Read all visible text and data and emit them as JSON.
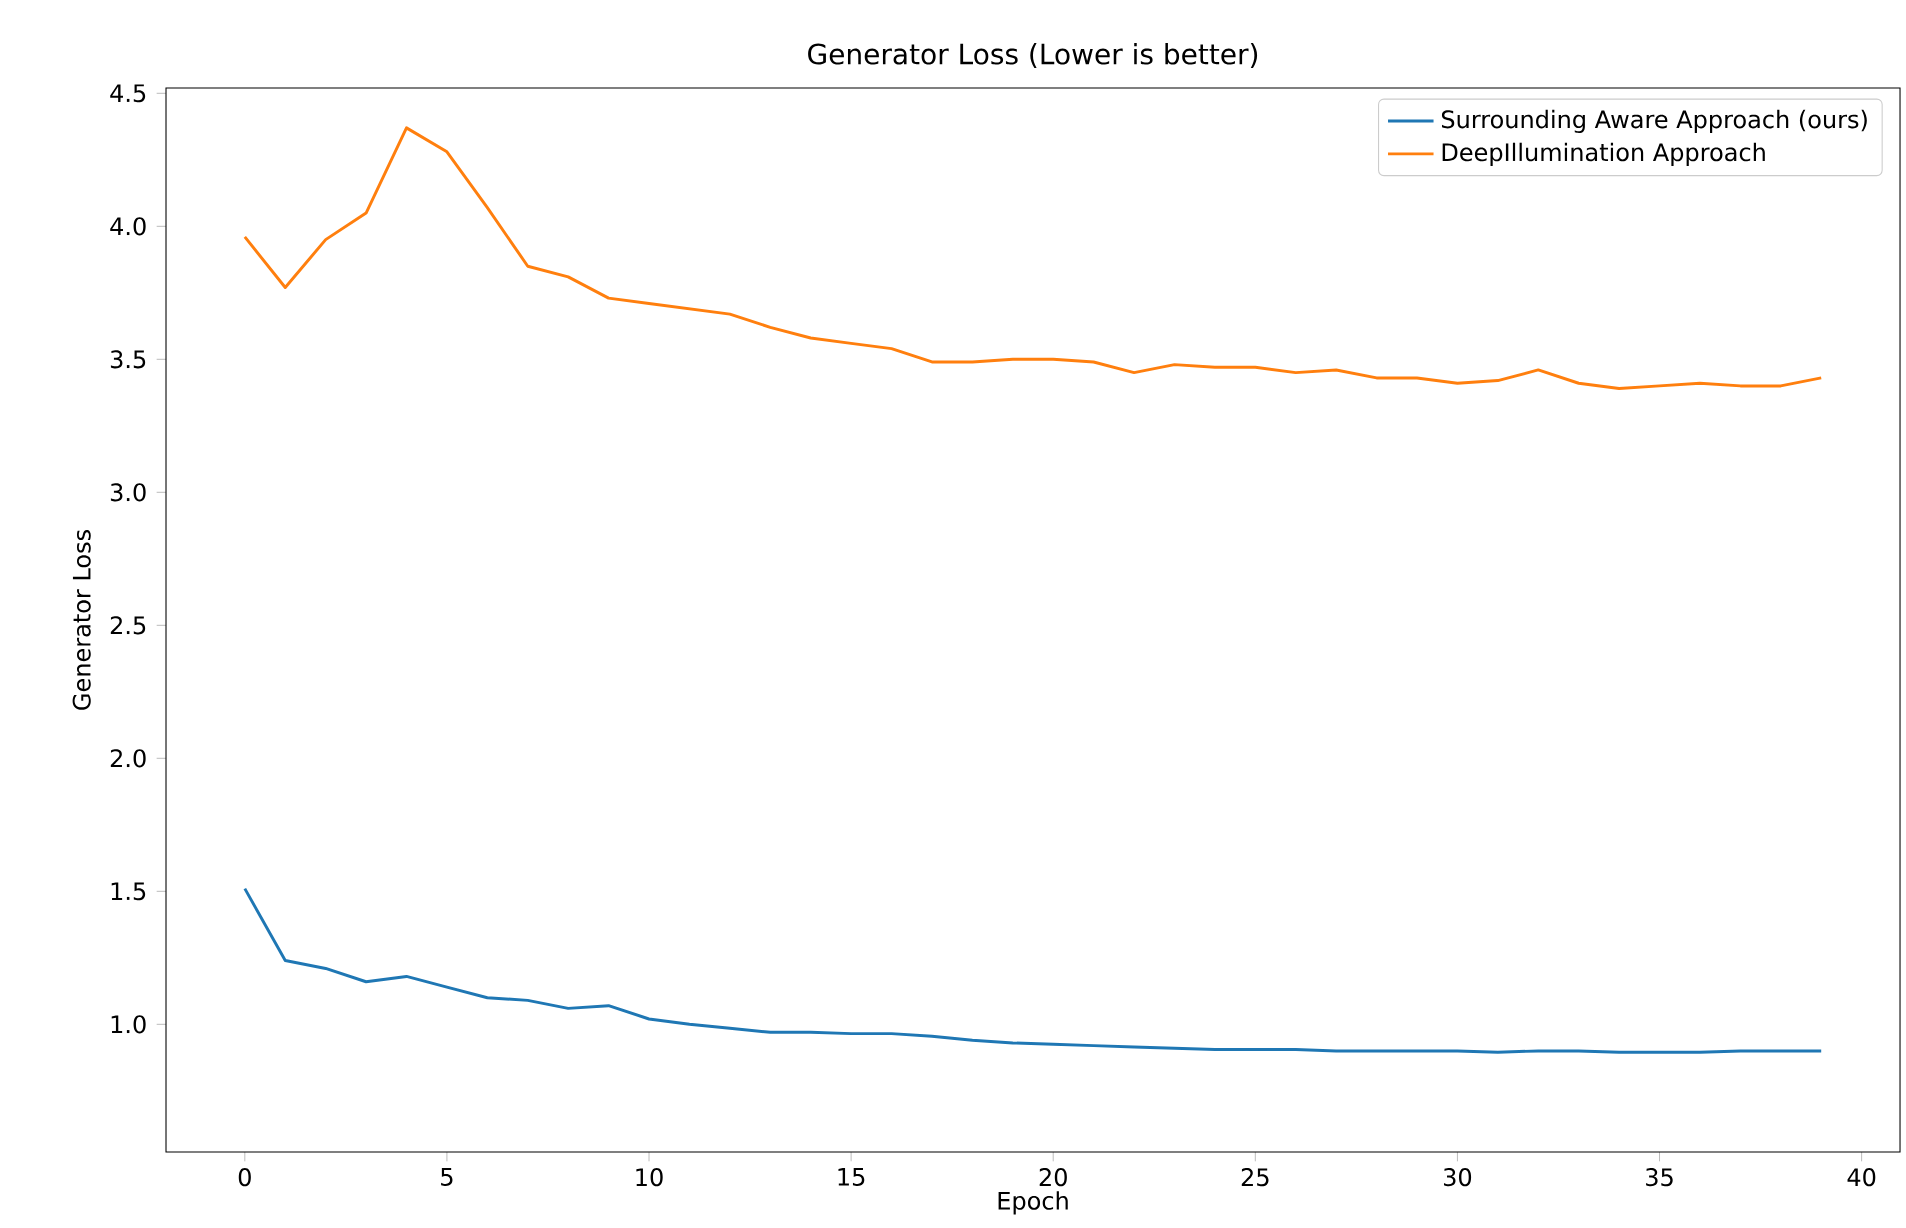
{
  "chart_data": {
    "type": "line",
    "title": "Generator Loss (Lower is better)",
    "xlabel": "Epoch",
    "ylabel": "Generator Loss",
    "x": [
      0,
      1,
      2,
      3,
      4,
      5,
      6,
      7,
      8,
      9,
      10,
      11,
      12,
      13,
      14,
      15,
      16,
      17,
      18,
      19,
      20,
      21,
      22,
      23,
      24,
      25,
      26,
      27,
      28,
      29,
      30,
      31,
      32,
      33,
      34,
      35,
      36,
      37,
      38,
      39
    ],
    "series": [
      {
        "name": "Surrounding Aware Approach (ours)",
        "color": "#1f77b4",
        "values": [
          1.51,
          1.24,
          1.21,
          1.16,
          1.18,
          1.14,
          1.1,
          1.09,
          1.06,
          1.07,
          1.02,
          1.0,
          0.985,
          0.97,
          0.97,
          0.965,
          0.965,
          0.955,
          0.94,
          0.93,
          0.925,
          0.92,
          0.915,
          0.91,
          0.905,
          0.905,
          0.905,
          0.9,
          0.9,
          0.9,
          0.9,
          0.895,
          0.9,
          0.9,
          0.895,
          0.895,
          0.895,
          0.9,
          0.9,
          0.9
        ]
      },
      {
        "name": "DeepIllumination Approach",
        "color": "#ff7f0e",
        "values": [
          3.96,
          3.77,
          3.95,
          4.05,
          4.37,
          4.28,
          4.07,
          3.85,
          3.81,
          3.73,
          3.71,
          3.69,
          3.67,
          3.62,
          3.58,
          3.56,
          3.54,
          3.49,
          3.49,
          3.5,
          3.5,
          3.49,
          3.45,
          3.48,
          3.47,
          3.47,
          3.45,
          3.46,
          3.43,
          3.43,
          3.41,
          3.42,
          3.46,
          3.41,
          3.39,
          3.4,
          3.41,
          3.4,
          3.4,
          3.43
        ]
      }
    ],
    "xlim": [
      -1.95,
      40.95
    ],
    "ylim": [
      0.52,
      4.52
    ],
    "xticks": [
      0,
      5,
      10,
      15,
      20,
      25,
      30,
      35,
      40
    ],
    "yticks": [
      {
        "value": 1.0,
        "label": "1.0"
      },
      {
        "value": 1.5,
        "label": "1.5"
      },
      {
        "value": 2.0,
        "label": "2.0"
      },
      {
        "value": 2.5,
        "label": "2.5"
      },
      {
        "value": 3.0,
        "label": "3.0"
      },
      {
        "value": 3.5,
        "label": "3.5"
      },
      {
        "value": 4.0,
        "label": "4.0"
      },
      {
        "value": 4.5,
        "label": "4.5"
      }
    ],
    "legend": "top right",
    "grid": false
  }
}
